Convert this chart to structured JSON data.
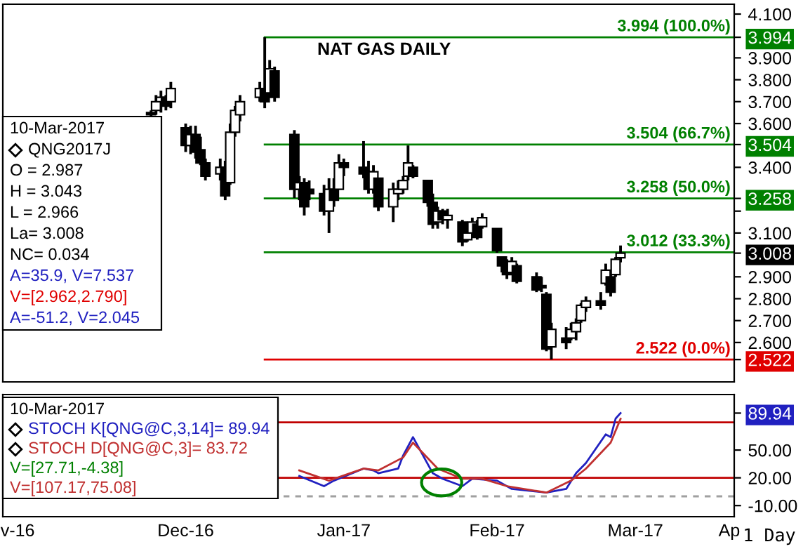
{
  "chart_data": [
    {
      "type": "candlestick",
      "title": "NAT GAS DAILY",
      "x": [
        "2016-12-05",
        "2016-12-06",
        "2016-12-07",
        "2016-12-08",
        "2016-12-09",
        "2016-12-12",
        "2016-12-13",
        "2016-12-14",
        "2016-12-15",
        "2016-12-16",
        "2016-12-19",
        "2016-12-20",
        "2016-12-21",
        "2016-12-22",
        "2016-12-23",
        "2016-12-27",
        "2016-12-28",
        "2016-12-29",
        "2016-12-30",
        "2017-01-03",
        "2017-01-04",
        "2017-01-05",
        "2017-01-06",
        "2017-01-09",
        "2017-01-10",
        "2017-01-11",
        "2017-01-12",
        "2017-01-13",
        "2017-01-17",
        "2017-01-18",
        "2017-01-19",
        "2017-01-20",
        "2017-01-23",
        "2017-01-24",
        "2017-01-25",
        "2017-01-26",
        "2017-01-27",
        "2017-01-30",
        "2017-01-31",
        "2017-02-01",
        "2017-02-02",
        "2017-02-03",
        "2017-02-06",
        "2017-02-07",
        "2017-02-08",
        "2017-02-09",
        "2017-02-10",
        "2017-02-13",
        "2017-02-14",
        "2017-02-15",
        "2017-02-16",
        "2017-02-17",
        "2017-02-21",
        "2017-02-22",
        "2017-02-23",
        "2017-02-24",
        "2017-02-27",
        "2017-02-28",
        "2017-03-01",
        "2017-03-02",
        "2017-03-03",
        "2017-03-06",
        "2017-03-07",
        "2017-03-08",
        "2017-03-09",
        "2017-03-10"
      ],
      "ohlc": [
        [
          3.65,
          3.66,
          3.63,
          3.64
        ],
        [
          3.66,
          3.73,
          3.64,
          3.7
        ],
        [
          3.7,
          3.75,
          3.65,
          3.72
        ],
        [
          3.72,
          3.73,
          3.66,
          3.68
        ],
        [
          3.7,
          3.79,
          3.67,
          3.76
        ],
        [
          3.58,
          3.6,
          3.47,
          3.5
        ],
        [
          3.5,
          3.59,
          3.46,
          3.55
        ],
        [
          3.55,
          3.59,
          3.44,
          3.47
        ],
        [
          3.48,
          3.54,
          3.41,
          3.42
        ],
        [
          3.42,
          3.44,
          3.34,
          3.36
        ],
        [
          3.37,
          3.44,
          3.34,
          3.4
        ],
        [
          3.4,
          3.43,
          3.25,
          3.27
        ],
        [
          3.33,
          3.6,
          3.32,
          3.56
        ],
        [
          3.56,
          3.68,
          3.54,
          3.66
        ],
        [
          3.64,
          3.73,
          3.61,
          3.7
        ],
        [
          3.72,
          3.79,
          3.7,
          3.76
        ],
        [
          3.76,
          3.994,
          3.67,
          3.7
        ],
        [
          3.74,
          3.89,
          3.73,
          3.85
        ],
        [
          3.84,
          3.86,
          3.7,
          3.72
        ],
        [
          3.55,
          3.57,
          3.26,
          3.3
        ],
        [
          3.3,
          3.36,
          3.25,
          3.33
        ],
        [
          3.33,
          3.35,
          3.18,
          3.22
        ],
        [
          3.3,
          3.34,
          3.25,
          3.28
        ],
        [
          3.28,
          3.32,
          3.18,
          3.2
        ],
        [
          3.2,
          3.35,
          3.1,
          3.3
        ],
        [
          3.3,
          3.35,
          3.22,
          3.25
        ],
        [
          3.3,
          3.46,
          3.3,
          3.42
        ],
        [
          3.42,
          3.44,
          3.36,
          3.4
        ],
        [
          3.4,
          3.52,
          3.35,
          3.37
        ],
        [
          3.38,
          3.43,
          3.28,
          3.3
        ],
        [
          3.3,
          3.41,
          3.28,
          3.38
        ],
        [
          3.35,
          3.35,
          3.2,
          3.22
        ],
        [
          3.22,
          3.33,
          3.15,
          3.3
        ],
        [
          3.28,
          3.34,
          3.25,
          3.3
        ],
        [
          3.3,
          3.36,
          3.28,
          3.34
        ],
        [
          3.36,
          3.5,
          3.34,
          3.42
        ],
        [
          3.4,
          3.41,
          3.35,
          3.36
        ],
        [
          3.34,
          3.34,
          3.22,
          3.24
        ],
        [
          3.24,
          3.28,
          3.12,
          3.14
        ],
        [
          3.15,
          3.22,
          3.12,
          3.2
        ],
        [
          3.2,
          3.21,
          3.14,
          3.16
        ],
        [
          3.16,
          3.21,
          3.12,
          3.18
        ],
        [
          3.15,
          3.16,
          3.04,
          3.06
        ],
        [
          3.07,
          3.14,
          3.06,
          3.1
        ],
        [
          3.1,
          3.17,
          3.08,
          3.15
        ],
        [
          3.14,
          3.16,
          3.07,
          3.08
        ],
        [
          3.13,
          3.19,
          3.12,
          3.17
        ],
        [
          3.12,
          3.12,
          3.01,
          3.02
        ],
        [
          2.99,
          2.99,
          2.92,
          2.95
        ],
        [
          2.95,
          2.98,
          2.89,
          2.91
        ],
        [
          2.92,
          2.99,
          2.91,
          2.97
        ],
        [
          2.95,
          2.96,
          2.87,
          2.88
        ],
        [
          2.9,
          2.92,
          2.83,
          2.84
        ],
        [
          2.86,
          2.9,
          2.83,
          2.85
        ],
        [
          2.82,
          2.83,
          2.56,
          2.57
        ],
        [
          2.58,
          2.69,
          2.522,
          2.66
        ],
        [
          2.62,
          2.67,
          2.57,
          2.6
        ],
        [
          2.62,
          2.69,
          2.61,
          2.66
        ],
        [
          2.65,
          2.71,
          2.61,
          2.69
        ],
        [
          2.7,
          2.78,
          2.69,
          2.77
        ],
        [
          2.76,
          2.81,
          2.74,
          2.79
        ],
        [
          2.79,
          2.83,
          2.75,
          2.77
        ],
        [
          2.87,
          2.96,
          2.86,
          2.93
        ],
        [
          2.9,
          2.92,
          2.81,
          2.83
        ],
        [
          2.91,
          2.99,
          2.9,
          2.98
        ],
        [
          2.987,
          3.043,
          2.966,
          3.008
        ]
      ],
      "color": "#000000",
      "xlim": [
        "2016-11-05",
        "2017-04-02"
      ],
      "ylim": [
        2.42,
        4.145
      ],
      "yticks": [
        {
          "value": 4.1,
          "label": "4.100"
        },
        {
          "value": 3.9,
          "label": "3.900"
        },
        {
          "value": 3.8,
          "label": "3.800"
        },
        {
          "value": 3.7,
          "label": "3.700"
        },
        {
          "value": 3.6,
          "label": "3.600"
        },
        {
          "value": 3.4,
          "label": "3.400"
        },
        {
          "value": 3.2,
          "label": null
        },
        {
          "value": 3.1,
          "label": "3.100"
        },
        {
          "value": 2.9,
          "label": "2.900"
        },
        {
          "value": 2.8,
          "label": "2.800"
        },
        {
          "value": 2.7,
          "label": "2.700"
        },
        {
          "value": 2.6,
          "label": "2.600"
        },
        {
          "value": 3.994,
          "label": "3.994"
        },
        {
          "value": 3.504,
          "label": "3.504"
        },
        {
          "value": 3.258,
          "label": "3.258"
        },
        {
          "value": 3.008,
          "label": "3.008"
        },
        {
          "value": 2.522,
          "label": "2.522"
        }
      ],
      "tick_labels": "y",
      "ref_lines": [
        {
          "axis": "y",
          "value": 3.994,
          "label": "3.994 (100.0%)",
          "color": "#008000"
        },
        {
          "axis": "y",
          "value": 3.504,
          "label": "3.504 (66.7%)",
          "color": "#008000"
        },
        {
          "axis": "y",
          "value": 3.258,
          "label": "3.258 (50.0%)",
          "color": "#008000"
        },
        {
          "axis": "y",
          "value": 3.012,
          "label": "3.012 (33.3%)",
          "color": "#008000"
        },
        {
          "axis": "y",
          "value": 2.522,
          "label": "2.522 (0.0%)",
          "color": "#e00000"
        }
      ],
      "annotations": [
        "10-Mar-2017",
        "QNG2017J",
        "O = 2.987",
        "H = 3.043",
        "L = 2.966",
        "La= 3.008",
        "NC= 0.034",
        "A=35.9, V=7.537",
        "V=[2.962,2.790]",
        "A=-51.2, V=2.045"
      ]
    },
    {
      "type": "line",
      "series": [
        {
          "name": "STOCH K[QNG@C,3,14]= 89.94",
          "color": "#2020c0",
          "x": [
            "2017-01-04",
            "2017-01-09",
            "2017-01-11",
            "2017-01-17",
            "2017-01-19",
            "2017-01-20",
            "2017-01-24",
            "2017-01-25",
            "2017-01-27",
            "2017-01-31",
            "2017-02-02",
            "2017-02-06",
            "2017-02-08",
            "2017-02-13",
            "2017-02-16",
            "2017-02-23",
            "2017-02-27",
            "2017-03-01",
            "2017-03-03",
            "2017-03-07",
            "2017-03-08",
            "2017-03-09",
            "2017-03-10"
          ],
          "values": [
            22,
            11,
            17,
            30,
            28,
            25,
            30,
            44,
            64,
            25,
            19,
            11,
            19,
            17,
            8,
            4,
            8,
            25,
            36,
            67,
            64,
            84,
            89.94
          ]
        },
        {
          "name": "STOCH D[QNG@C,3]= 83.72",
          "color": "#c03030",
          "x": [
            "2017-01-04",
            "2017-01-10",
            "2017-01-17",
            "2017-01-20",
            "2017-01-25",
            "2017-01-27",
            "2017-02-01",
            "2017-02-06",
            "2017-02-10",
            "2017-02-15",
            "2017-02-23",
            "2017-02-28",
            "2017-03-03",
            "2017-03-08",
            "2017-03-10"
          ],
          "values": [
            28,
            17,
            30,
            28,
            42,
            58,
            30,
            19,
            19,
            11,
            4,
            17,
            30,
            58,
            83.72
          ]
        }
      ],
      "xlim": [
        "2016-11-05",
        "2017-04-02"
      ],
      "xticks": [
        {
          "value": "2016-11-08",
          "label": "v-16"
        },
        {
          "value": "2016-12-12",
          "label": "Dec-16"
        },
        {
          "value": "2017-01-13",
          "label": "Jan-17"
        },
        {
          "value": "2017-02-13",
          "label": "Feb-17"
        },
        {
          "value": "2017-03-13",
          "label": "Mar-17"
        },
        {
          "value": "2017-04-01",
          "label": "Ap"
        }
      ],
      "ylim": [
        -22,
        110
      ],
      "yticks": [
        {
          "value": 50,
          "label": "50.00"
        },
        {
          "value": 20,
          "label": "20.00"
        },
        {
          "value": -10,
          "label": "-10.00"
        },
        {
          "value": 89.94,
          "label": "89.94"
        }
      ],
      "ref_lines": [
        {
          "axis": "y",
          "value": 80,
          "color": "#c00000"
        },
        {
          "axis": "y",
          "value": 20,
          "color": "#c00000"
        },
        {
          "axis": "y",
          "value": 0,
          "color": "#a0a0a0",
          "line_style": "dashed"
        }
      ],
      "annotations": [
        "10-Mar-2017",
        "V=[27.71,-4.38]",
        "V=[107.17,75.08]",
        "1 Day"
      ]
    }
  ]
}
